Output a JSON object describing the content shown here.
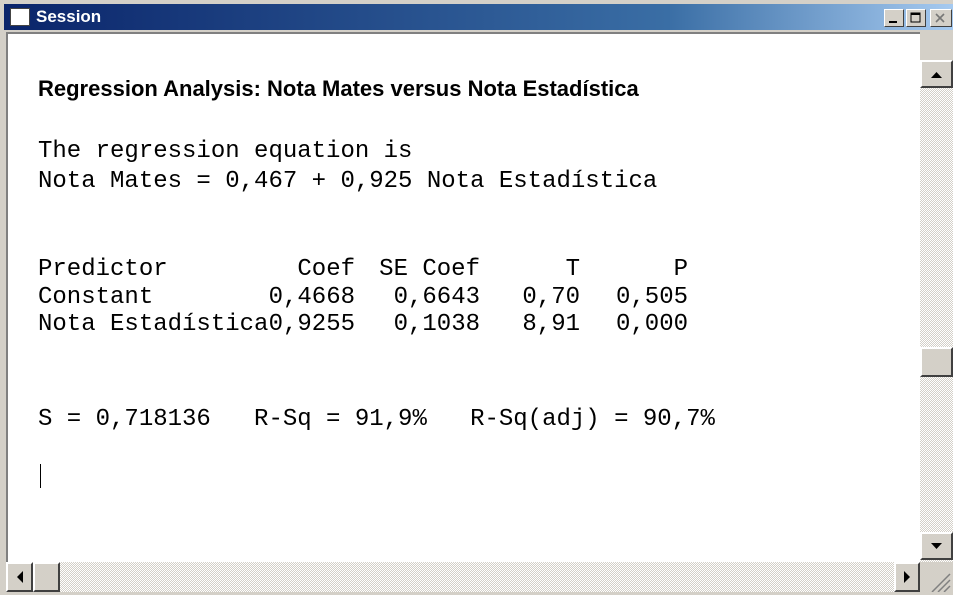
{
  "window": {
    "title": "Session"
  },
  "content": {
    "heading": "Regression Analysis: Nota Mates versus Nota Estadística",
    "equation": [
      "The regression equation is",
      "Nota Mates = 0,467 + 0,925 Nota Estadística"
    ],
    "table": {
      "header": [
        "Predictor",
        "Coef",
        "SE Coef",
        "T",
        "P"
      ],
      "rows": [
        [
          "Constant",
          "0,4668",
          "0,6643",
          "0,70",
          "0,505"
        ],
        [
          "Nota Estadística",
          "0,9255",
          "0,1038",
          "8,91",
          "0,000"
        ]
      ]
    },
    "summary": "S = 0,718136   R-Sq = 91,9%   R-Sq(adj) = 90,7%"
  }
}
